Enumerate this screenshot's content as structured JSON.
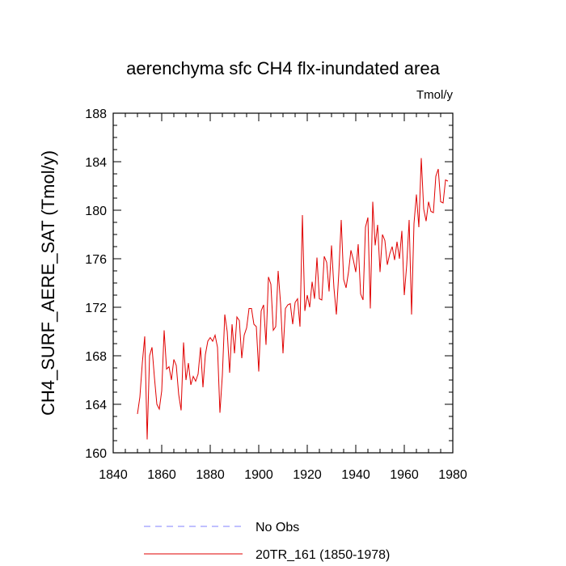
{
  "chart_data": {
    "type": "line",
    "title": "aerenchyma sfc CH4 flx-inundated area",
    "units_label": "Tmol/y",
    "ylabel": "CH4_SURF_AERE_SAT  (Tmol/y)",
    "xlabel": "",
    "xlim": [
      1840,
      1980
    ],
    "ylim": [
      160,
      188
    ],
    "x_ticks": [
      1840,
      1860,
      1880,
      1900,
      1920,
      1940,
      1960,
      1980
    ],
    "y_ticks": [
      160,
      164,
      168,
      172,
      176,
      180,
      184,
      188
    ],
    "grid": false,
    "legend_position": "bottom",
    "series": [
      {
        "name": "No Obs",
        "color": "#8080ff",
        "dash": "dashed",
        "x": [],
        "values": []
      },
      {
        "name": "20TR_161 (1850-1978)",
        "color": "#e00000",
        "dash": "solid",
        "x": [
          1850,
          1851,
          1852,
          1853,
          1854,
          1855,
          1856,
          1857,
          1858,
          1859,
          1860,
          1861,
          1862,
          1863,
          1864,
          1865,
          1866,
          1867,
          1868,
          1869,
          1870,
          1871,
          1872,
          1873,
          1874,
          1875,
          1876,
          1877,
          1878,
          1879,
          1880,
          1881,
          1882,
          1883,
          1884,
          1885,
          1886,
          1887,
          1888,
          1889,
          1890,
          1891,
          1892,
          1893,
          1894,
          1895,
          1896,
          1897,
          1898,
          1899,
          1900,
          1901,
          1902,
          1903,
          1904,
          1905,
          1906,
          1907,
          1908,
          1909,
          1910,
          1911,
          1912,
          1913,
          1914,
          1915,
          1916,
          1917,
          1918,
          1919,
          1920,
          1921,
          1922,
          1923,
          1924,
          1925,
          1926,
          1927,
          1928,
          1929,
          1930,
          1931,
          1932,
          1933,
          1934,
          1935,
          1936,
          1937,
          1938,
          1939,
          1940,
          1941,
          1942,
          1943,
          1944,
          1945,
          1946,
          1947,
          1948,
          1949,
          1950,
          1951,
          1952,
          1953,
          1954,
          1955,
          1956,
          1957,
          1958,
          1959,
          1960,
          1961,
          1962,
          1963,
          1964,
          1965,
          1966,
          1967,
          1968,
          1969,
          1970,
          1971,
          1972,
          1973,
          1974,
          1975,
          1976,
          1977,
          1978
        ],
        "values": [
          163.2,
          164.6,
          167.4,
          169.6,
          161.1,
          168.0,
          168.7,
          166.2,
          164.0,
          163.6,
          165.1,
          170.1,
          166.9,
          167.1,
          166.0,
          167.7,
          167.2,
          164.8,
          163.5,
          169.1,
          166.0,
          167.4,
          165.6,
          166.3,
          165.9,
          166.5,
          168.7,
          165.4,
          168.1,
          169.2,
          169.5,
          169.2,
          169.7,
          168.7,
          163.3,
          166.4,
          171.4,
          170.0,
          166.6,
          170.6,
          168.2,
          171.2,
          170.9,
          167.8,
          169.7,
          170.3,
          171.9,
          171.9,
          170.6,
          170.4,
          166.7,
          171.7,
          172.2,
          168.9,
          174.5,
          173.9,
          170.1,
          170.4,
          175.0,
          172.3,
          168.2,
          171.9,
          172.2,
          172.3,
          170.6,
          172.4,
          172.7,
          170.4,
          179.6,
          171.7,
          173.0,
          172.0,
          174.1,
          172.7,
          176.1,
          172.7,
          172.6,
          176.2,
          175.7,
          173.3,
          177.1,
          173.6,
          171.4,
          174.8,
          179.2,
          174.3,
          173.6,
          174.9,
          176.7,
          175.9,
          174.9,
          177.2,
          173.1,
          172.6,
          178.6,
          179.4,
          171.9,
          180.7,
          177.1,
          178.8,
          174.9,
          178.0,
          177.5,
          175.5,
          176.4,
          177.0,
          175.9,
          177.4,
          176.0,
          178.3,
          173.0,
          175.5,
          179.2,
          171.4,
          178.9,
          181.3,
          178.6,
          184.3,
          180.1,
          179.1,
          180.7,
          179.9,
          179.8,
          182.8,
          183.4,
          180.7,
          180.6,
          182.5,
          182.4
        ]
      }
    ]
  }
}
